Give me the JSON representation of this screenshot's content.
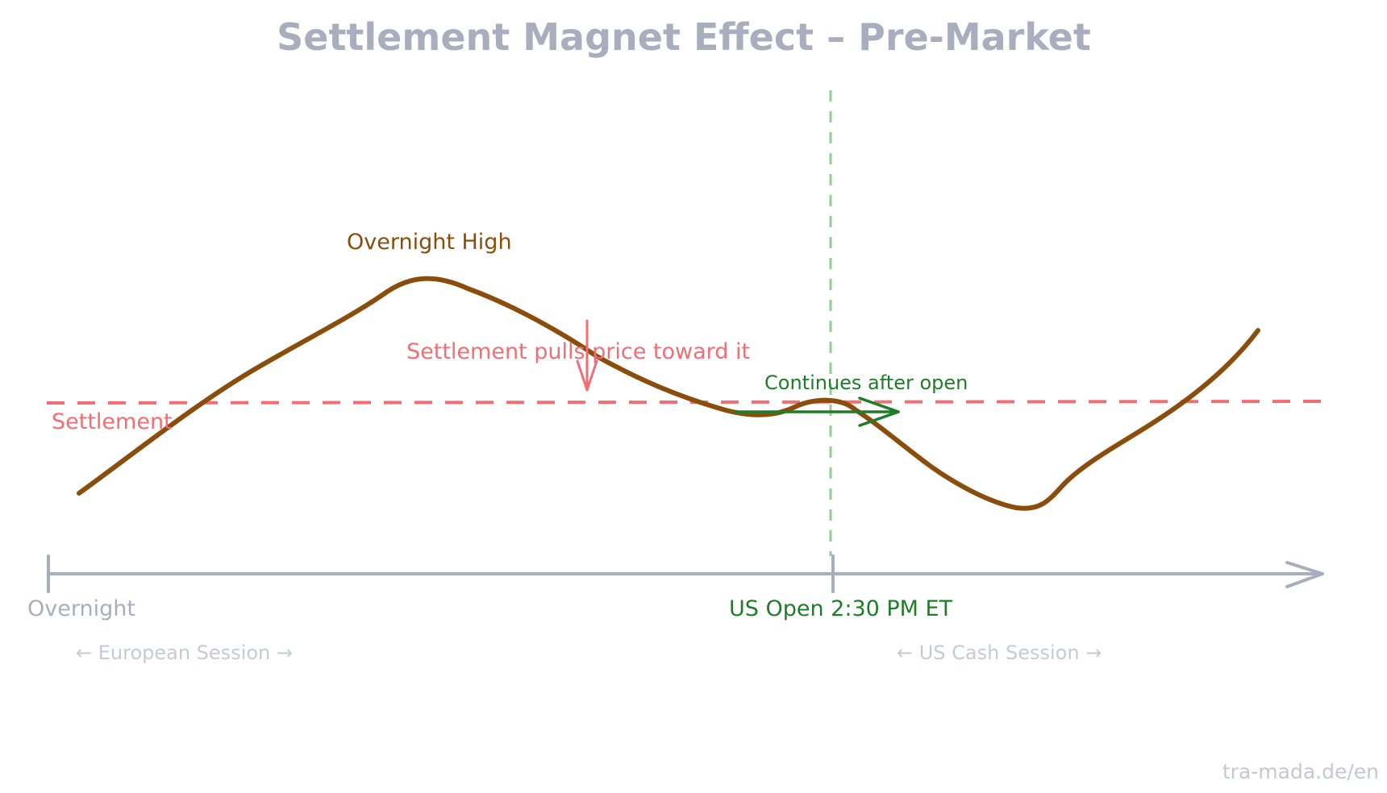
{
  "title": "Settlement Magnet Effect – Pre-Market",
  "annotations": {
    "overnight_high": "Overnight High",
    "settlement": "Settlement",
    "settlement_pull": "Settlement pulls price toward it",
    "continues_after_open": "Continues after open"
  },
  "axis": {
    "start_label": "Overnight",
    "open_label": "US Open 2:30 PM ET"
  },
  "sessions": {
    "european": "← European Session →",
    "us_cash": "← US Cash Session →"
  },
  "watermark": "tra-mada.de/en",
  "colors": {
    "price_line": "#8a4d0b",
    "settlement_line": "#f26e74",
    "us_open_line": "#8fcf95",
    "continue_arrow": "#1e7e28",
    "axis": "#a9aebf"
  }
}
